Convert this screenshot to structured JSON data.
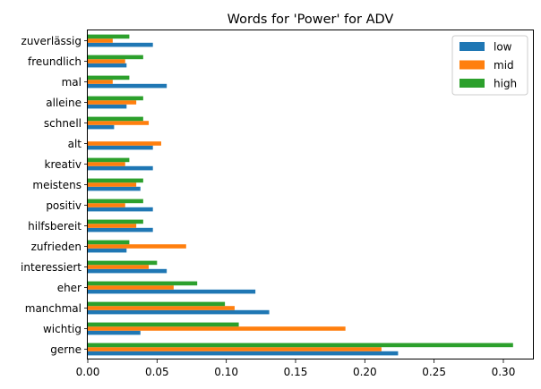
{
  "chart_data": {
    "type": "bar",
    "orientation": "horizontal",
    "title": "Words for 'Power' for ADV",
    "xlabel": "",
    "ylabel": "",
    "xlim": [
      0,
      0.322
    ],
    "x_ticks": [
      "0.00",
      "0.05",
      "0.10",
      "0.15",
      "0.20",
      "0.25",
      "0.30"
    ],
    "x_tick_values": [
      0,
      0.05,
      0.1,
      0.15,
      0.2,
      0.25,
      0.3
    ],
    "grid": false,
    "legend_position": "top-right",
    "categories": [
      "gerne",
      "wichtig",
      "manchmal",
      "eher",
      "interessiert",
      "zufrieden",
      "hilfsbereit",
      "positiv",
      "meistens",
      "kreativ",
      "alt",
      "schnell",
      "alleine",
      "mal",
      "freundlich",
      "zuverlässig"
    ],
    "series": [
      {
        "name": "low",
        "color": "#1f77b4",
        "values": [
          0.224,
          0.038,
          0.131,
          0.121,
          0.057,
          0.028,
          0.047,
          0.047,
          0.038,
          0.047,
          0.047,
          0.019,
          0.028,
          0.057,
          0.028,
          0.047
        ]
      },
      {
        "name": "mid",
        "color": "#ff7f0e",
        "values": [
          0.212,
          0.186,
          0.106,
          0.062,
          0.044,
          0.071,
          0.035,
          0.027,
          0.035,
          0.027,
          0.053,
          0.044,
          0.035,
          0.018,
          0.027,
          0.018
        ]
      },
      {
        "name": "high",
        "color": "#2ca02c",
        "values": [
          0.307,
          0.109,
          0.099,
          0.079,
          0.05,
          0.03,
          0.04,
          0.04,
          0.04,
          0.03,
          0.0,
          0.04,
          0.04,
          0.03,
          0.04,
          0.03
        ]
      }
    ]
  }
}
